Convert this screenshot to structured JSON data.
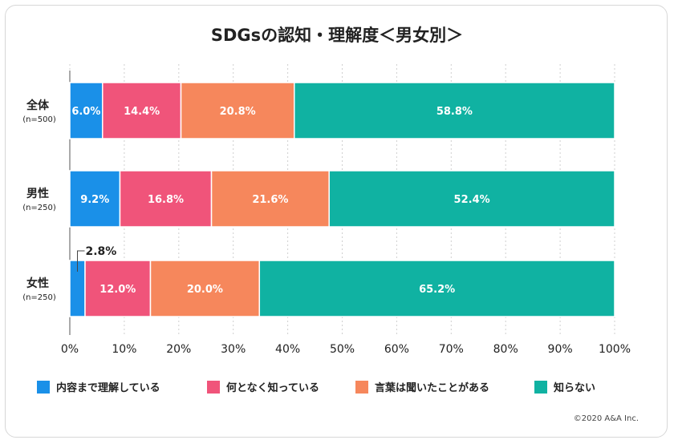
{
  "chart_data": {
    "type": "bar",
    "orientation": "horizontal",
    "stacked": true,
    "title": "SDGsの認知・理解度＜男女別＞",
    "categories": [
      {
        "name": "全体",
        "sub": "(n=500)"
      },
      {
        "name": "男性",
        "sub": "(n=250)"
      },
      {
        "name": "女性",
        "sub": "(n=250)"
      }
    ],
    "series": [
      {
        "name": "内容まで理解している",
        "color": "#1a90e8",
        "values": [
          6.0,
          9.2,
          2.8
        ],
        "labels": [
          "6.0%",
          "9.2%",
          "2.8%"
        ]
      },
      {
        "name": "何となく知っている",
        "color": "#f0547a",
        "values": [
          14.4,
          16.8,
          12.0
        ],
        "labels": [
          "14.4%",
          "16.8%",
          "12.0%"
        ]
      },
      {
        "name": "言葉は聞いたことがある",
        "color": "#f6875c",
        "values": [
          20.8,
          21.6,
          20.0
        ],
        "labels": [
          "20.8%",
          "21.6%",
          "20.0%"
        ]
      },
      {
        "name": "知らない",
        "color": "#10b2a2",
        "values": [
          58.8,
          52.4,
          65.2
        ],
        "labels": [
          "58.8%",
          "52.4%",
          "65.2%"
        ]
      }
    ],
    "xlim": [
      0,
      100
    ],
    "x_ticks": [
      "0%",
      "10%",
      "20%",
      "30%",
      "40%",
      "50%",
      "60%",
      "70%",
      "80%",
      "90%",
      "100%"
    ],
    "grid": true,
    "legend_position": "bottom"
  },
  "footer": {
    "copyright": "©2020 A&A Inc."
  }
}
